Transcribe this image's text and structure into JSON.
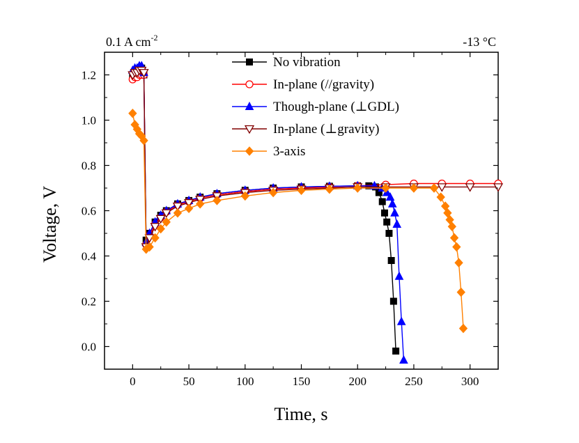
{
  "chart_data": {
    "type": "line",
    "title": "",
    "xlabel": "Time, s",
    "ylabel": "Voltage, V",
    "xlim": [
      -25,
      325
    ],
    "ylim": [
      -0.1,
      1.3
    ],
    "xticks": [
      0,
      50,
      100,
      150,
      200,
      250,
      300
    ],
    "yticks": [
      0.0,
      0.2,
      0.4,
      0.6,
      0.8,
      1.0,
      1.2
    ],
    "xtick_labels": [
      "0",
      "50",
      "100",
      "150",
      "200",
      "250",
      "300"
    ],
    "ytick_labels": [
      "0.0",
      "0.2",
      "0.4",
      "0.6",
      "0.8",
      "1.0",
      "1.2"
    ],
    "annotations": {
      "current_density_prefix": "0.1 A cm",
      "current_density_exponent": "-2",
      "temperature": "-13 °C"
    },
    "legend_position": "top-center",
    "series": [
      {
        "name": "No vibration",
        "color": "#000000",
        "marker": "square-filled",
        "x": [
          0,
          2,
          4,
          6,
          8,
          10,
          12,
          15,
          20,
          25,
          30,
          40,
          50,
          60,
          75,
          100,
          125,
          150,
          175,
          200,
          210,
          216,
          219,
          222,
          224,
          226,
          228,
          230,
          232,
          234
        ],
        "y": [
          1.2,
          1.21,
          1.22,
          1.22,
          1.23,
          1.2,
          0.47,
          0.5,
          0.55,
          0.58,
          0.6,
          0.63,
          0.645,
          0.66,
          0.675,
          0.69,
          0.7,
          0.705,
          0.708,
          0.71,
          0.71,
          0.705,
          0.68,
          0.64,
          0.59,
          0.55,
          0.5,
          0.38,
          0.2,
          -0.02
        ]
      },
      {
        "name": "In-plane (//gravity)",
        "color": "#ff0000",
        "marker": "circle-open",
        "x": [
          0,
          2,
          4,
          6,
          8,
          10,
          12,
          15,
          20,
          25,
          30,
          40,
          50,
          60,
          75,
          100,
          125,
          150,
          175,
          200,
          225,
          250,
          275,
          300,
          325
        ],
        "y": [
          1.18,
          1.19,
          1.19,
          1.2,
          1.2,
          1.2,
          0.45,
          0.49,
          0.54,
          0.57,
          0.595,
          0.625,
          0.64,
          0.655,
          0.67,
          0.685,
          0.695,
          0.7,
          0.705,
          0.71,
          0.715,
          0.72,
          0.72,
          0.72,
          0.72
        ]
      },
      {
        "name": "Though-plane (⊥GDL)",
        "color": "#0000ff",
        "marker": "triangle-up-filled",
        "x": [
          0,
          2,
          4,
          6,
          8,
          10,
          12,
          15,
          20,
          25,
          30,
          40,
          50,
          60,
          75,
          100,
          125,
          150,
          175,
          200,
          215,
          222,
          226,
          229,
          231,
          233,
          235,
          237,
          239,
          241
        ],
        "y": [
          1.22,
          1.23,
          1.23,
          1.24,
          1.24,
          1.21,
          0.46,
          0.5,
          0.55,
          0.58,
          0.6,
          0.63,
          0.645,
          0.66,
          0.675,
          0.69,
          0.7,
          0.705,
          0.708,
          0.71,
          0.71,
          0.7,
          0.68,
          0.66,
          0.63,
          0.59,
          0.54,
          0.31,
          0.11,
          -0.06
        ]
      },
      {
        "name": "In-plane (⊥gravity)",
        "color": "#800000",
        "marker": "triangle-down-open",
        "x": [
          0,
          2,
          4,
          6,
          8,
          10,
          12,
          15,
          20,
          25,
          30,
          40,
          50,
          60,
          75,
          100,
          125,
          150,
          175,
          200,
          225,
          250,
          275,
          300,
          325
        ],
        "y": [
          1.2,
          1.21,
          1.21,
          1.22,
          1.22,
          1.21,
          0.44,
          0.48,
          0.53,
          0.565,
          0.59,
          0.62,
          0.635,
          0.65,
          0.665,
          0.68,
          0.69,
          0.695,
          0.7,
          0.705,
          0.705,
          0.705,
          0.705,
          0.705,
          0.705
        ]
      },
      {
        "name": "3-axis",
        "color": "#ff8000",
        "marker": "diamond-filled",
        "x": [
          0,
          2,
          4,
          6,
          8,
          10,
          12,
          15,
          20,
          25,
          30,
          40,
          50,
          60,
          75,
          100,
          125,
          150,
          175,
          200,
          225,
          250,
          268,
          274,
          278,
          280,
          282,
          284,
          286,
          288,
          290,
          292,
          294
        ],
        "y": [
          1.03,
          0.98,
          0.96,
          0.94,
          0.93,
          0.91,
          0.43,
          0.44,
          0.48,
          0.52,
          0.55,
          0.59,
          0.61,
          0.63,
          0.645,
          0.665,
          0.68,
          0.69,
          0.695,
          0.7,
          0.7,
          0.7,
          0.7,
          0.66,
          0.62,
          0.59,
          0.56,
          0.53,
          0.48,
          0.44,
          0.37,
          0.24,
          0.08
        ]
      }
    ]
  }
}
